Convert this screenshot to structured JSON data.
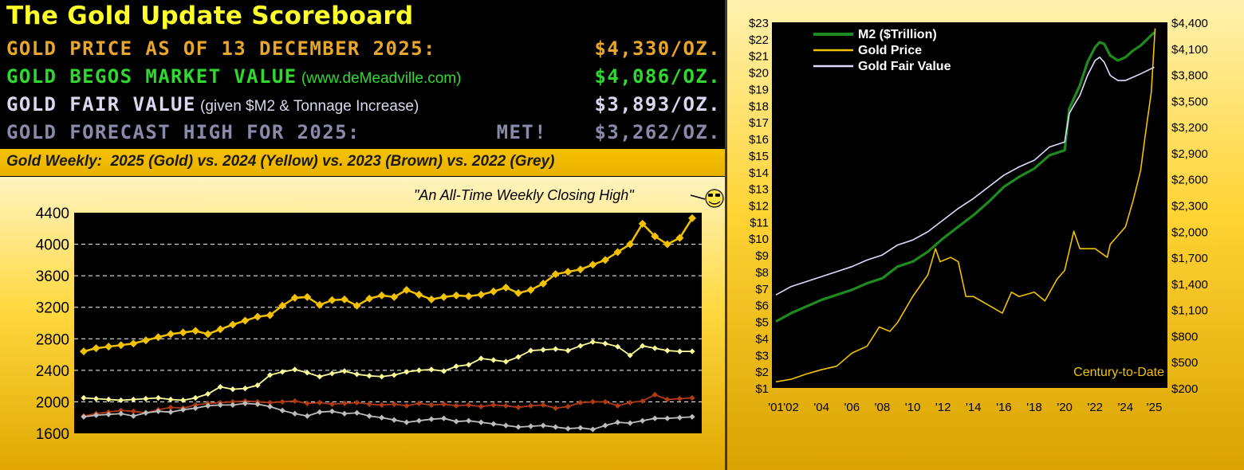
{
  "scoreboard": {
    "title": "The Gold Update Scoreboard",
    "rows": [
      {
        "label": "GOLD PRICE AS OF 13 DECEMBER 2025:",
        "note": "",
        "met": "",
        "value": "$4,330/OZ.",
        "color": "#e8a72b"
      },
      {
        "label": "GOLD BEGOS MARKET VALUE",
        "note": " (www.deMeadville.com)",
        "met": "",
        "value": "$4,086/OZ.",
        "color": "#2fd92f"
      },
      {
        "label": "GOLD FAIR VALUE",
        "note": " (given $M2 & Tonnage Increase)",
        "met": "",
        "value": "$3,893/OZ.",
        "color": "#d8d8ee"
      },
      {
        "label": "GOLD FORECAST HIGH FOR 2025:",
        "note": "",
        "met": "MET!",
        "value": "$3,262/OZ.",
        "color": "#8a8aaa"
      }
    ]
  },
  "weekly_title": "Gold Weekly:  2025 (Gold) vs. 2024 (Yellow) vs. 2023 (Brown) vs. 2022 (Grey)",
  "weekly_annotation": "\"An All-Time Weekly Closing High\"",
  "icons": {
    "annotation": "smiley-face-icon"
  },
  "colors": {
    "gold": "#f2c200",
    "yellow": "#ffff9a",
    "brown": "#b03a14",
    "grey": "#bdbdbd",
    "m2": "#1f8a1f",
    "fair_value": "#dcdcff",
    "plot_bg": "#000000"
  },
  "chart_data": [
    {
      "type": "line",
      "x": [
        1,
        2,
        3,
        4,
        5,
        6,
        7,
        8,
        9,
        10,
        11,
        12,
        13,
        14,
        15,
        16,
        17,
        18,
        19,
        20,
        21,
        22,
        23,
        24,
        25,
        26,
        27,
        28,
        29,
        30,
        31,
        32,
        33,
        34,
        35,
        36,
        37,
        38,
        39,
        40,
        41,
        42,
        43,
        44,
        45,
        46,
        47,
        48,
        49,
        50
      ],
      "ylim": [
        1600,
        4400
      ],
      "yticks": [
        1600,
        2000,
        2400,
        2800,
        3200,
        3600,
        4000,
        4400
      ],
      "grid": true,
      "series": [
        {
          "values": [
            1820,
            1850,
            1870,
            1890,
            1880,
            1860,
            1900,
            1930,
            1920,
            1960,
            1980,
            1990,
            2000,
            2010,
            2000,
            1990,
            2000,
            2010,
            1980,
            1990,
            1970,
            1980,
            1990,
            1970,
            1960,
            1970,
            1950,
            1980,
            1960,
            1970,
            1950,
            1960,
            1940,
            1960,
            1950,
            1930,
            1950,
            1960,
            1920,
            1940,
            1990,
            2000,
            2000,
            1950,
            1990,
            2010,
            2090,
            2030,
            2040,
            2050
          ]
        },
        {
          "values": [
            1810,
            1830,
            1840,
            1850,
            1820,
            1860,
            1880,
            1870,
            1900,
            1920,
            1950,
            1960,
            1960,
            1980,
            1970,
            1940,
            1890,
            1850,
            1820,
            1870,
            1880,
            1850,
            1860,
            1820,
            1800,
            1770,
            1740,
            1760,
            1780,
            1790,
            1750,
            1760,
            1740,
            1720,
            1700,
            1680,
            1690,
            1700,
            1680,
            1660,
            1670,
            1650,
            1700,
            1740,
            1730,
            1760,
            1790,
            1790,
            1800,
            1810
          ]
        },
        {
          "values": [
            2050,
            2040,
            2030,
            2020,
            2030,
            2040,
            2050,
            2030,
            2020,
            2050,
            2100,
            2190,
            2160,
            2170,
            2210,
            2340,
            2380,
            2410,
            2370,
            2320,
            2360,
            2390,
            2350,
            2330,
            2320,
            2340,
            2380,
            2400,
            2410,
            2390,
            2450,
            2470,
            2550,
            2530,
            2510,
            2570,
            2650,
            2660,
            2670,
            2650,
            2710,
            2760,
            2740,
            2700,
            2590,
            2710,
            2680,
            2650,
            2640,
            2640
          ]
        },
        {
          "values": [
            2640,
            2680,
            2700,
            2720,
            2740,
            2780,
            2820,
            2860,
            2880,
            2900,
            2860,
            2920,
            2980,
            3030,
            3080,
            3100,
            3220,
            3320,
            3330,
            3230,
            3290,
            3300,
            3220,
            3310,
            3350,
            3330,
            3420,
            3360,
            3300,
            3330,
            3350,
            3340,
            3360,
            3400,
            3450,
            3380,
            3420,
            3500,
            3620,
            3650,
            3680,
            3740,
            3800,
            3900,
            4000,
            4260,
            4100,
            4000,
            4080,
            4330
          ]
        }
      ]
    },
    {
      "type": "line",
      "title": "Century-to-Date",
      "x_ticks": [
        "'01",
        "'02",
        "'04",
        "'06",
        "'08",
        "'10",
        "'12",
        "'14",
        "'16",
        "'18",
        "'20",
        "'22",
        "'24",
        "'25"
      ],
      "ylim_left": [
        1,
        23
      ],
      "ylim_right": [
        200,
        4400
      ],
      "left_ticks": [
        "$1",
        "$2",
        "$3",
        "$4",
        "$5",
        "$6",
        "$7",
        "$8",
        "$9",
        "$10",
        "$11",
        "$12",
        "$13",
        "$14",
        "$15",
        "$16",
        "$17",
        "$18",
        "$19",
        "$20",
        "$21",
        "$22",
        "$23"
      ],
      "right_ticks": [
        "$200",
        "$500",
        "$800",
        "$1,100",
        "$1,400",
        "$1,700",
        "$2,000",
        "$2,300",
        "$2,600",
        "$2,900",
        "$3,200",
        "$3,500",
        "$3,800",
        "$4,100",
        "$4,400"
      ],
      "legend": "top-left",
      "series": [
        {
          "name": "M2 ($Trillion)",
          "axis": "left",
          "x": [
            2001,
            2002,
            2003,
            2004,
            2005,
            2006,
            2007,
            2008,
            2009,
            2010,
            2011,
            2012,
            2013,
            2014,
            2015,
            2016,
            2017,
            2018,
            2019,
            2020,
            2020.3,
            2020.6,
            2021,
            2021.5,
            2022,
            2022.3,
            2022.6,
            2023,
            2023.5,
            2024,
            2024.5,
            2025,
            2025.9
          ],
          "values": [
            5.0,
            5.5,
            5.9,
            6.3,
            6.6,
            6.9,
            7.3,
            7.6,
            8.3,
            8.6,
            9.2,
            10.0,
            10.7,
            11.4,
            12.2,
            13.1,
            13.7,
            14.2,
            15.0,
            15.3,
            17.8,
            18.4,
            19.2,
            20.6,
            21.5,
            21.8,
            21.7,
            21.0,
            20.7,
            20.9,
            21.3,
            21.6,
            22.4
          ]
        },
        {
          "name": "Gold Price",
          "axis": "right",
          "x": [
            2001,
            2002,
            2003,
            2004,
            2005,
            2006,
            2007,
            2007.8,
            2008.5,
            2009,
            2010,
            2011,
            2011.5,
            2011.8,
            2012.5,
            2013,
            2013.5,
            2014,
            2015,
            2015.9,
            2016.5,
            2017,
            2018,
            2018.7,
            2019.5,
            2020,
            2020.6,
            2021,
            2022,
            2022.8,
            2023,
            2023.5,
            2024,
            2024.5,
            2025,
            2025.3,
            2025.7,
            2025.95
          ],
          "values": [
            270,
            300,
            360,
            410,
            450,
            600,
            680,
            900,
            850,
            950,
            1250,
            1500,
            1800,
            1650,
            1700,
            1650,
            1250,
            1250,
            1150,
            1060,
            1300,
            1250,
            1300,
            1200,
            1450,
            1550,
            2000,
            1800,
            1800,
            1700,
            1850,
            1950,
            2050,
            2350,
            2700,
            3100,
            3600,
            4330
          ]
        },
        {
          "name": "Gold Fair Value",
          "axis": "left",
          "x": [
            2001,
            2002,
            2003,
            2004,
            2005,
            2006,
            2007,
            2008,
            2009,
            2010,
            2011,
            2012,
            2013,
            2014,
            2015,
            2016,
            2017,
            2018,
            2019,
            2020,
            2020.3,
            2020.6,
            2021,
            2021.5,
            2022,
            2022.3,
            2022.6,
            2023,
            2023.5,
            2024,
            2024.5,
            2025,
            2025.9
          ],
          "values": [
            6.6,
            7.1,
            7.4,
            7.7,
            8.0,
            8.3,
            8.7,
            9.0,
            9.6,
            9.9,
            10.4,
            11.1,
            11.8,
            12.4,
            13.1,
            13.8,
            14.3,
            14.7,
            15.5,
            15.8,
            17.5,
            18.0,
            18.6,
            19.8,
            20.7,
            20.9,
            20.6,
            19.8,
            19.5,
            19.5,
            19.7,
            19.9,
            20.3
          ]
        }
      ]
    }
  ]
}
